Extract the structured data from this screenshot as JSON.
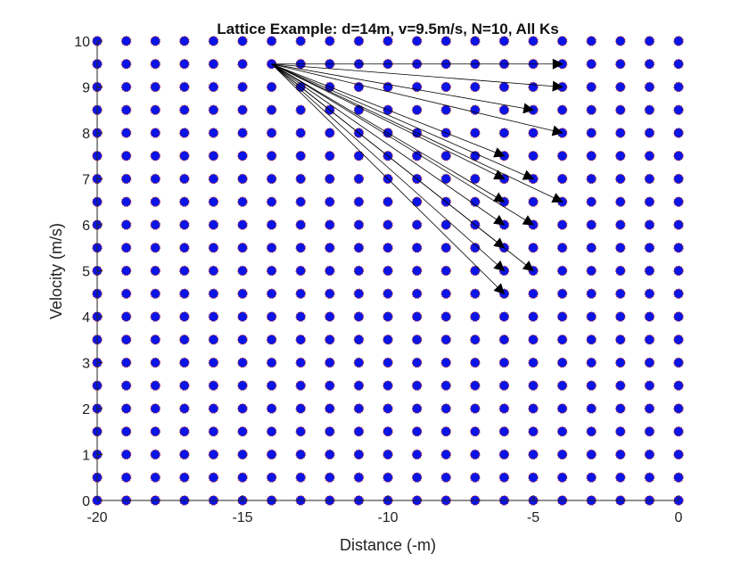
{
  "chart_data": {
    "type": "scatter",
    "title": "Lattice Example: d=14m, v=9.5m/s, N=10, All Ks",
    "xlabel": "Distance (-m)",
    "ylabel": "Velocity (m/s)",
    "xlim": [
      -20,
      0
    ],
    "ylim": [
      0,
      10
    ],
    "x_ticks": [
      -20,
      -15,
      -10,
      -5,
      0
    ],
    "y_ticks": [
      0,
      1,
      2,
      3,
      4,
      5,
      6,
      7,
      8,
      9,
      10
    ],
    "x_tick_labels": [
      "-20",
      "-15",
      "-10",
      "-5",
      "0"
    ],
    "y_tick_labels": [
      "0",
      "1",
      "2",
      "3",
      "4",
      "5",
      "6",
      "7",
      "8",
      "9",
      "10"
    ],
    "grid": false,
    "lattice": {
      "x_start": -20,
      "x_end": 0,
      "x_step": 1,
      "y_start": 0,
      "y_end": 10,
      "y_step": 0.5
    },
    "colors": {
      "point": "#0a14e6",
      "point_edge": "#b42828",
      "axis": "#222222",
      "arrow": "#000000"
    },
    "origin": [
      -14,
      9.5
    ],
    "arrow_targets": [
      [
        -4,
        9.5
      ],
      [
        -4,
        9
      ],
      [
        -5,
        8.5
      ],
      [
        -4,
        8
      ],
      [
        -6,
        7.5
      ],
      [
        -5,
        7
      ],
      [
        -6,
        7
      ],
      [
        -4,
        6.5
      ],
      [
        -6,
        6.5
      ],
      [
        -5,
        6
      ],
      [
        -6,
        6
      ],
      [
        -6,
        5.5
      ],
      [
        -5,
        5
      ],
      [
        -6,
        5
      ],
      [
        -6,
        4.5
      ]
    ]
  }
}
